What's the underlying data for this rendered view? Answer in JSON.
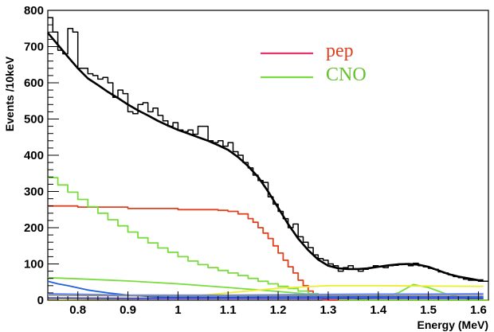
{
  "chart_data": {
    "type": "line",
    "title": "",
    "xlabel": "Energy (MeV)",
    "ylabel": "Events /10keV",
    "xlim": [
      0.74,
      1.62
    ],
    "ylim": [
      0,
      800
    ],
    "x_ticks": [
      0.8,
      0.9,
      1.0,
      1.1,
      1.2,
      1.3,
      1.4,
      1.5,
      1.6
    ],
    "x_tick_labels": [
      "0.8",
      "0.9",
      "1",
      "1.1",
      "1.2",
      "1.3",
      "1.4",
      "1.5",
      "1.6"
    ],
    "y_ticks": [
      0,
      100,
      200,
      300,
      400,
      500,
      600,
      700,
      800
    ],
    "y_tick_labels": [
      "0",
      "100",
      "200",
      "300",
      "400",
      "500",
      "600",
      "700",
      "800"
    ],
    "grid": false,
    "legend": {
      "placement": "top-center",
      "entries": [
        {
          "name": "pep",
          "color": "#e8346a",
          "text_color": "#e0401e"
        },
        {
          "name": "CNO",
          "color": "#78dc3c",
          "text_color": "#66c030"
        }
      ]
    },
    "series": [
      {
        "color": "#000000",
        "style": "step",
        "points": [
          [
            0.74,
            780
          ],
          [
            0.75,
            740
          ],
          [
            0.76,
            690
          ],
          [
            0.77,
            680
          ],
          [
            0.78,
            750
          ],
          [
            0.79,
            740
          ],
          [
            0.8,
            640
          ],
          [
            0.81,
            640
          ],
          [
            0.82,
            625
          ],
          [
            0.83,
            620
          ],
          [
            0.84,
            610
          ],
          [
            0.85,
            615
          ],
          [
            0.86,
            600
          ],
          [
            0.87,
            560
          ],
          [
            0.88,
            580
          ],
          [
            0.89,
            570
          ],
          [
            0.9,
            520
          ],
          [
            0.91,
            515
          ],
          [
            0.92,
            540
          ],
          [
            0.93,
            545
          ],
          [
            0.94,
            520
          ],
          [
            0.95,
            530
          ],
          [
            0.96,
            510
          ],
          [
            0.97,
            495
          ],
          [
            0.98,
            480
          ],
          [
            0.99,
            490
          ],
          [
            1.0,
            470
          ],
          [
            1.01,
            465
          ],
          [
            1.02,
            470
          ],
          [
            1.03,
            458
          ],
          [
            1.04,
            480
          ],
          [
            1.05,
            480
          ],
          [
            1.06,
            440
          ],
          [
            1.07,
            435
          ],
          [
            1.08,
            440
          ],
          [
            1.09,
            425
          ],
          [
            1.1,
            435
          ],
          [
            1.11,
            410
          ],
          [
            1.12,
            400
          ],
          [
            1.13,
            380
          ],
          [
            1.14,
            365
          ],
          [
            1.15,
            345
          ],
          [
            1.16,
            330
          ],
          [
            1.17,
            325
          ],
          [
            1.18,
            285
          ],
          [
            1.19,
            265
          ],
          [
            1.2,
            245
          ],
          [
            1.21,
            225
          ],
          [
            1.22,
            200
          ],
          [
            1.23,
            210
          ],
          [
            1.24,
            175
          ],
          [
            1.25,
            160
          ],
          [
            1.26,
            145
          ],
          [
            1.27,
            125
          ],
          [
            1.28,
            115
          ],
          [
            1.29,
            110
          ],
          [
            1.3,
            100
          ],
          [
            1.31,
            95
          ],
          [
            1.32,
            80
          ],
          [
            1.33,
            90
          ],
          [
            1.34,
            95
          ],
          [
            1.35,
            85
          ],
          [
            1.36,
            80
          ],
          [
            1.37,
            85
          ],
          [
            1.38,
            90
          ],
          [
            1.39,
            95
          ],
          [
            1.4,
            92
          ],
          [
            1.41,
            90
          ],
          [
            1.42,
            95
          ],
          [
            1.43,
            96
          ],
          [
            1.44,
            100
          ],
          [
            1.45,
            100
          ],
          [
            1.46,
            95
          ],
          [
            1.47,
            102
          ],
          [
            1.48,
            95
          ],
          [
            1.49,
            92
          ],
          [
            1.5,
            88
          ],
          [
            1.51,
            85
          ],
          [
            1.52,
            78
          ],
          [
            1.53,
            75
          ],
          [
            1.54,
            70
          ],
          [
            1.55,
            65
          ],
          [
            1.56,
            62
          ],
          [
            1.57,
            58
          ],
          [
            1.58,
            55
          ],
          [
            1.59,
            55
          ],
          [
            1.6,
            52
          ],
          [
            1.61,
            52
          ]
        ]
      },
      {
        "color": "#000000",
        "style": "line",
        "points": [
          [
            0.74,
            738
          ],
          [
            0.76,
            705
          ],
          [
            0.78,
            672
          ],
          [
            0.8,
            640
          ],
          [
            0.82,
            612
          ],
          [
            0.84,
            594
          ],
          [
            0.86,
            575
          ],
          [
            0.88,
            558
          ],
          [
            0.9,
            540
          ],
          [
            0.92,
            524
          ],
          [
            0.94,
            510
          ],
          [
            0.96,
            495
          ],
          [
            0.98,
            482
          ],
          [
            1.0,
            470
          ],
          [
            1.02,
            460
          ],
          [
            1.04,
            450
          ],
          [
            1.06,
            440
          ],
          [
            1.08,
            428
          ],
          [
            1.1,
            415
          ],
          [
            1.12,
            395
          ],
          [
            1.14,
            370
          ],
          [
            1.16,
            340
          ],
          [
            1.18,
            300
          ],
          [
            1.2,
            255
          ],
          [
            1.22,
            210
          ],
          [
            1.24,
            170
          ],
          [
            1.26,
            138
          ],
          [
            1.28,
            112
          ],
          [
            1.3,
            95
          ],
          [
            1.32,
            88
          ],
          [
            1.34,
            86
          ],
          [
            1.36,
            86
          ],
          [
            1.38,
            88
          ],
          [
            1.4,
            92
          ],
          [
            1.42,
            96
          ],
          [
            1.44,
            99
          ],
          [
            1.46,
            100
          ],
          [
            1.48,
            98
          ],
          [
            1.5,
            92
          ],
          [
            1.52,
            82
          ],
          [
            1.54,
            72
          ],
          [
            1.56,
            65
          ],
          [
            1.58,
            60
          ],
          [
            1.6,
            55
          ],
          [
            1.61,
            55
          ]
        ]
      },
      {
        "color": "#e0401e",
        "style": "step",
        "points": [
          [
            0.74,
            260
          ],
          [
            0.8,
            257
          ],
          [
            0.9,
            253
          ],
          [
            1.0,
            250
          ],
          [
            1.05,
            250
          ],
          [
            1.08,
            248
          ],
          [
            1.1,
            245
          ],
          [
            1.12,
            238
          ],
          [
            1.14,
            225
          ],
          [
            1.15,
            215
          ],
          [
            1.16,
            200
          ],
          [
            1.17,
            185
          ],
          [
            1.18,
            170
          ],
          [
            1.19,
            150
          ],
          [
            1.2,
            130
          ],
          [
            1.21,
            110
          ],
          [
            1.22,
            92
          ],
          [
            1.23,
            75
          ],
          [
            1.24,
            55
          ],
          [
            1.25,
            40
          ],
          [
            1.26,
            25
          ],
          [
            1.27,
            15
          ],
          [
            1.28,
            5
          ],
          [
            1.29,
            1
          ],
          [
            1.3,
            0
          ],
          [
            1.61,
            0
          ]
        ]
      },
      {
        "color": "#78dc3c",
        "style": "step",
        "points": [
          [
            0.74,
            338
          ],
          [
            0.76,
            318
          ],
          [
            0.78,
            298
          ],
          [
            0.8,
            278
          ],
          [
            0.82,
            258
          ],
          [
            0.84,
            240
          ],
          [
            0.86,
            222
          ],
          [
            0.88,
            205
          ],
          [
            0.9,
            188
          ],
          [
            0.92,
            172
          ],
          [
            0.94,
            158
          ],
          [
            0.96,
            144
          ],
          [
            0.98,
            132
          ],
          [
            1.0,
            120
          ],
          [
            1.02,
            108
          ],
          [
            1.04,
            98
          ],
          [
            1.06,
            90
          ],
          [
            1.08,
            82
          ],
          [
            1.1,
            75
          ],
          [
            1.12,
            68
          ],
          [
            1.14,
            60
          ],
          [
            1.16,
            52
          ],
          [
            1.18,
            45
          ],
          [
            1.2,
            38
          ],
          [
            1.22,
            32
          ],
          [
            1.24,
            25
          ],
          [
            1.26,
            18
          ],
          [
            1.28,
            10
          ],
          [
            1.3,
            5
          ],
          [
            1.32,
            1
          ],
          [
            1.34,
            0
          ],
          [
            1.61,
            0
          ]
        ]
      },
      {
        "color": "#78dc3c",
        "style": "line",
        "points": [
          [
            0.74,
            62
          ],
          [
            0.8,
            59
          ],
          [
            0.9,
            53
          ],
          [
            1.0,
            45
          ],
          [
            1.1,
            35
          ],
          [
            1.2,
            24
          ],
          [
            1.3,
            12
          ],
          [
            1.36,
            4
          ],
          [
            1.4,
            6
          ],
          [
            1.44,
            20
          ],
          [
            1.47,
            43
          ],
          [
            1.5,
            35
          ],
          [
            1.54,
            15
          ],
          [
            1.58,
            3
          ],
          [
            1.61,
            2
          ]
        ]
      },
      {
        "color": "#eeee30",
        "style": "line",
        "points": [
          [
            0.74,
            2
          ],
          [
            0.9,
            4
          ],
          [
            1.0,
            8
          ],
          [
            1.1,
            20
          ],
          [
            1.2,
            33
          ],
          [
            1.3,
            40
          ],
          [
            1.4,
            40
          ],
          [
            1.5,
            39
          ],
          [
            1.61,
            38
          ]
        ]
      },
      {
        "color": "#2060e0",
        "style": "line",
        "points": [
          [
            0.74,
            52
          ],
          [
            0.76,
            45
          ],
          [
            0.78,
            40
          ],
          [
            0.8,
            34
          ],
          [
            0.82,
            28
          ],
          [
            0.84,
            24
          ],
          [
            0.86,
            20
          ],
          [
            0.88,
            17
          ],
          [
            0.9,
            14
          ],
          [
            0.92,
            12
          ],
          [
            0.94,
            10
          ],
          [
            0.96,
            9
          ],
          [
            0.98,
            8
          ],
          [
            1.0,
            8
          ],
          [
            1.1,
            8
          ],
          [
            1.2,
            9
          ],
          [
            1.3,
            9
          ],
          [
            1.4,
            9
          ],
          [
            1.5,
            9
          ],
          [
            1.61,
            9
          ]
        ]
      },
      {
        "color": "#6a8cff",
        "style": "line",
        "points": [
          [
            0.74,
            18
          ],
          [
            0.9,
            14
          ],
          [
            1.0,
            14
          ],
          [
            1.1,
            14
          ],
          [
            1.2,
            15
          ],
          [
            1.3,
            16
          ],
          [
            1.4,
            17
          ],
          [
            1.5,
            17
          ],
          [
            1.61,
            18
          ]
        ]
      },
      {
        "color": "#8a8a8a",
        "style": "line",
        "points": [
          [
            0.74,
            14
          ],
          [
            0.9,
            12
          ],
          [
            1.0,
            12
          ],
          [
            1.2,
            12
          ],
          [
            1.4,
            13
          ],
          [
            1.61,
            14
          ]
        ]
      },
      {
        "color": "#3a3ad0",
        "style": "line",
        "points": [
          [
            0.74,
            6
          ],
          [
            0.9,
            5
          ],
          [
            1.1,
            5
          ],
          [
            1.3,
            5
          ],
          [
            1.61,
            5
          ]
        ]
      }
    ]
  }
}
